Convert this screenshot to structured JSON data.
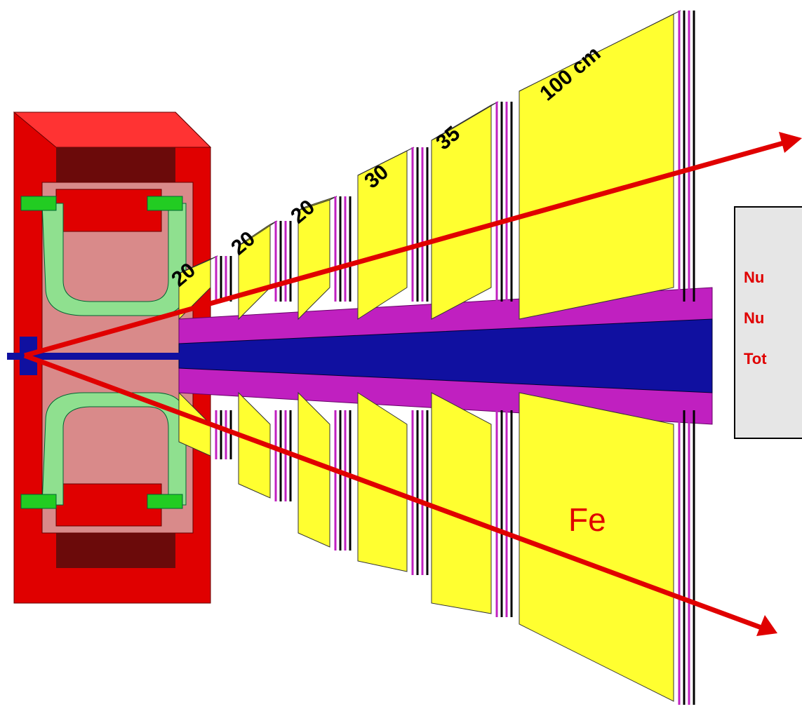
{
  "labels": {
    "absorbers": [
      "20",
      "20",
      "20",
      "30",
      "35",
      "100 cm"
    ],
    "material": "Fe"
  },
  "info_box": {
    "lines": [
      "Nu",
      "Nu",
      "Tot"
    ]
  }
}
